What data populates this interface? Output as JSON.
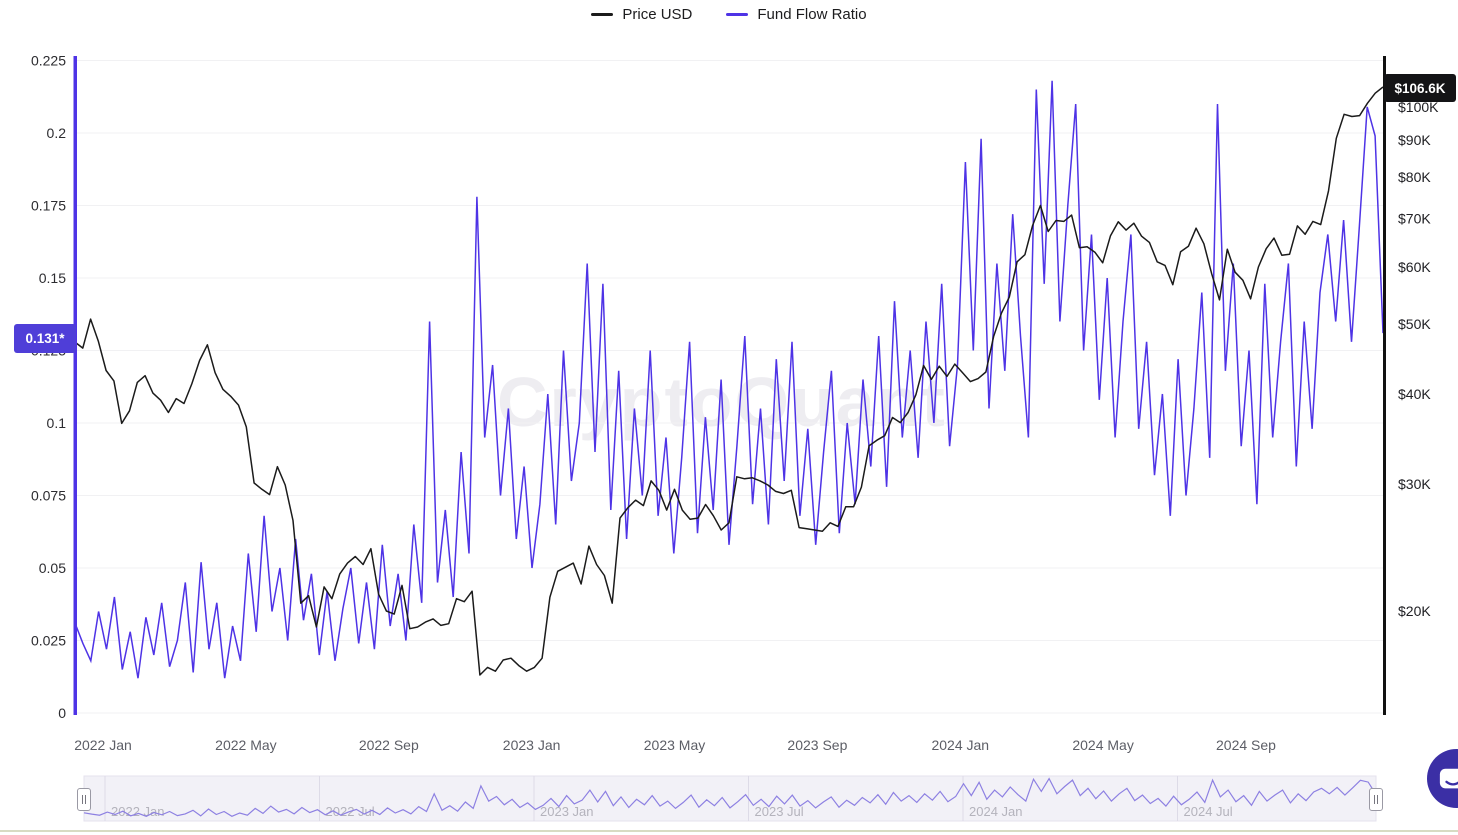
{
  "watermark": "CryptoQuant",
  "legend": {
    "items": [
      {
        "label": "Price USD",
        "color": "#1b1b1b"
      },
      {
        "label": "Fund Flow Ratio",
        "color": "#4e33e6"
      }
    ]
  },
  "badges": {
    "ratio_last": "0.131*",
    "price_last": "$106.6K"
  },
  "colors": {
    "ratio_line": "#4e33e6",
    "price_line": "#1b1b1b",
    "ratio_badge": "#4f3ed8",
    "price_badge": "#141416",
    "nav_line": "#8d80e2",
    "nav_bg": "#f2f1f7",
    "grid": "#f1f1f3"
  },
  "chart_data": {
    "type": "line",
    "title": "",
    "x_range": [
      "2021 Dec",
      "2024 Dec"
    ],
    "x_ticks": [
      "2022 Jan",
      "2022 May",
      "2022 Sep",
      "2023 Jan",
      "2023 May",
      "2023 Sep",
      "2024 Jan",
      "2024 May",
      "2024 Sep"
    ],
    "left_axis": {
      "label": "Fund Flow Ratio",
      "scale": "linear",
      "range": [
        0,
        0.225
      ],
      "ticks": [
        0,
        0.025,
        0.05,
        0.075,
        0.1,
        0.125,
        0.15,
        0.175,
        0.2,
        0.225
      ],
      "last_value": 0.131
    },
    "right_axis": {
      "label": "Price USD",
      "scale": "log",
      "last_value_usd": 106600,
      "ticks": [
        {
          "label": "$100K",
          "k": 100
        },
        {
          "label": "$90K",
          "k": 90
        },
        {
          "label": "$80K",
          "k": 80
        },
        {
          "label": "$70K",
          "k": 70
        },
        {
          "label": "$60K",
          "k": 60
        },
        {
          "label": "$50K",
          "k": 50
        },
        {
          "label": "$40K",
          "k": 40
        },
        {
          "label": "$30K",
          "k": 30
        },
        {
          "label": "$20K",
          "k": 20
        }
      ]
    },
    "series": [
      {
        "name": "Price USD",
        "axis": "right",
        "color": "#1b1b1b",
        "units": "USD thousands, weekly",
        "values": [
          47.2,
          46.3,
          50.8,
          47.3,
          43.1,
          41.7,
          36.4,
          37.9,
          41.5,
          42.4,
          40.1,
          39.2,
          37.7,
          39.4,
          38.8,
          41.3,
          44.5,
          46.8,
          42.8,
          40.6,
          39.7,
          38.6,
          36.0,
          30.1,
          29.5,
          29.0,
          31.7,
          29.9,
          26.7,
          20.5,
          21.0,
          19.0,
          21.6,
          20.8,
          22.5,
          23.3,
          23.8,
          23.2,
          24.4,
          21.1,
          20.0,
          19.8,
          21.7,
          18.9,
          19.0,
          19.3,
          19.5,
          19.1,
          19.2,
          20.8,
          20.6,
          21.3,
          16.3,
          16.7,
          16.5,
          17.1,
          17.2,
          16.8,
          16.5,
          16.7,
          17.2,
          20.9,
          22.7,
          23.0,
          23.3,
          21.8,
          24.6,
          23.2,
          22.4,
          20.5,
          26.9,
          27.8,
          28.5,
          28.0,
          30.3,
          29.4,
          27.6,
          29.5,
          27.6,
          26.8,
          26.9,
          28.1,
          27.1,
          25.9,
          26.5,
          30.7,
          30.5,
          30.6,
          30.3,
          29.9,
          29.3,
          29.1,
          29.4,
          26.1,
          26.0,
          25.9,
          25.8,
          26.5,
          26.2,
          27.9,
          27.9,
          29.7,
          33.9,
          34.5,
          35.0,
          37.1,
          36.5,
          37.7,
          39.9,
          43.8,
          41.9,
          43.7,
          42.3,
          44.0,
          42.8,
          41.6,
          42.0,
          42.9,
          48.1,
          51.8,
          54.5,
          61.0,
          62.4,
          68.5,
          73.0,
          67.2,
          69.6,
          69.4,
          70.8,
          63.8,
          64.0,
          62.9,
          60.8,
          66.3,
          69.3,
          67.5,
          69.0,
          66.2,
          64.9,
          61.0,
          60.3,
          56.7,
          63.0,
          64.1,
          67.9,
          64.6,
          58.7,
          54.0,
          63.5,
          59.0,
          57.5,
          54.2,
          60.0,
          63.6,
          65.8,
          62.3,
          62.5,
          68.4,
          66.6,
          69.4,
          68.7,
          76.5,
          90.5,
          97.7,
          97.0,
          97.3,
          101.2,
          104.5,
          106.6
        ]
      },
      {
        "name": "Fund Flow Ratio",
        "axis": "left",
        "color": "#4e33e6",
        "units": "ratio, weekly",
        "values": [
          0.031,
          0.024,
          0.018,
          0.035,
          0.022,
          0.04,
          0.015,
          0.028,
          0.012,
          0.033,
          0.02,
          0.038,
          0.016,
          0.025,
          0.045,
          0.014,
          0.052,
          0.022,
          0.038,
          0.012,
          0.03,
          0.018,
          0.055,
          0.028,
          0.068,
          0.035,
          0.05,
          0.025,
          0.06,
          0.032,
          0.048,
          0.02,
          0.042,
          0.018,
          0.036,
          0.05,
          0.024,
          0.045,
          0.022,
          0.058,
          0.03,
          0.048,
          0.025,
          0.065,
          0.038,
          0.135,
          0.045,
          0.07,
          0.04,
          0.09,
          0.055,
          0.178,
          0.095,
          0.12,
          0.075,
          0.105,
          0.06,
          0.085,
          0.05,
          0.072,
          0.11,
          0.065,
          0.125,
          0.08,
          0.1,
          0.155,
          0.09,
          0.148,
          0.07,
          0.118,
          0.06,
          0.105,
          0.075,
          0.125,
          0.068,
          0.095,
          0.055,
          0.088,
          0.128,
          0.062,
          0.102,
          0.07,
          0.115,
          0.058,
          0.092,
          0.13,
          0.072,
          0.105,
          0.065,
          0.122,
          0.08,
          0.128,
          0.068,
          0.098,
          0.058,
          0.09,
          0.118,
          0.062,
          0.1,
          0.072,
          0.115,
          0.085,
          0.13,
          0.078,
          0.142,
          0.095,
          0.125,
          0.088,
          0.135,
          0.1,
          0.148,
          0.092,
          0.12,
          0.19,
          0.125,
          0.198,
          0.105,
          0.155,
          0.118,
          0.172,
          0.13,
          0.095,
          0.215,
          0.148,
          0.218,
          0.135,
          0.175,
          0.21,
          0.125,
          0.165,
          0.108,
          0.15,
          0.095,
          0.135,
          0.165,
          0.098,
          0.128,
          0.082,
          0.11,
          0.068,
          0.122,
          0.075,
          0.105,
          0.145,
          0.088,
          0.21,
          0.118,
          0.155,
          0.092,
          0.125,
          0.072,
          0.148,
          0.095,
          0.128,
          0.155,
          0.085,
          0.135,
          0.098,
          0.145,
          0.165,
          0.135,
          0.17,
          0.128,
          0.168,
          0.209,
          0.199,
          0.131
        ]
      }
    ],
    "navigator": {
      "ticks": [
        "2022 Jan",
        "2022 Jul",
        "2023 Jan",
        "2023 Jul",
        "2024 Jan",
        "2024 Jul"
      ],
      "series_shown": "Fund Flow Ratio"
    }
  }
}
